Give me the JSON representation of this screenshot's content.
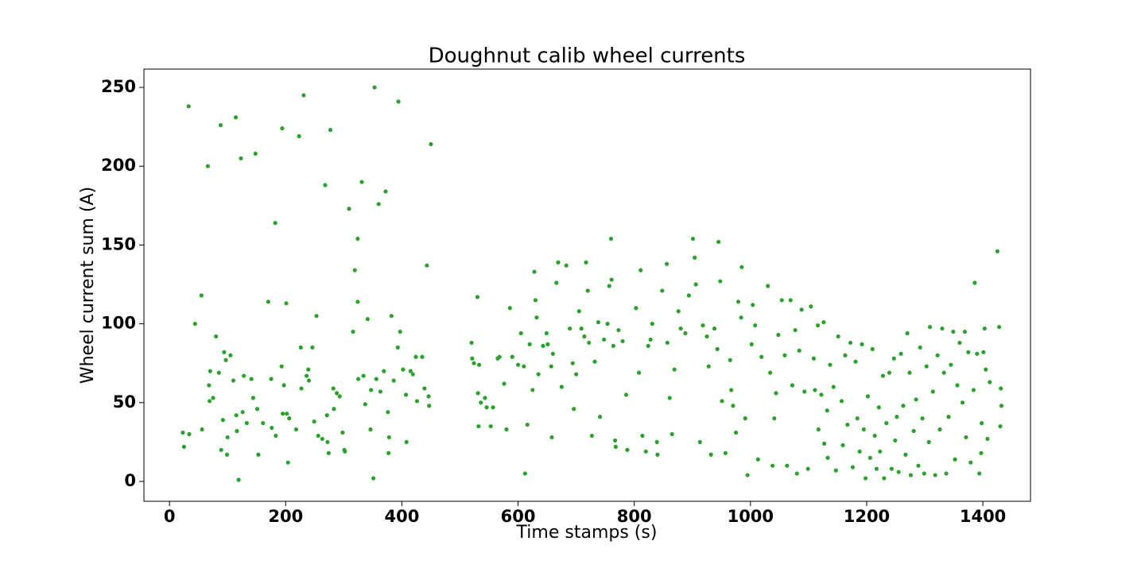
{
  "chart_data": {
    "type": "scatter",
    "title": "Doughnut calib wheel currents",
    "x_label": "Time stamps (s)",
    "y_label": "Wheel current sum (A)",
    "color": "#2ca02c",
    "xlim": [
      -44,
      1482
    ],
    "ylim": [
      -12.6,
      261.6
    ],
    "xticks": [
      0,
      200,
      400,
      600,
      800,
      1000,
      1200,
      1400
    ],
    "yticks": [
      0,
      50,
      100,
      150,
      200,
      250
    ],
    "x": [
      23,
      25,
      33,
      34,
      44,
      55,
      56,
      66,
      69,
      70,
      68,
      75,
      80,
      85,
      88,
      89,
      92,
      94,
      97,
      99,
      100,
      105,
      110,
      114,
      115,
      116,
      119,
      123,
      126,
      128,
      133,
      141,
      144,
      148,
      151,
      153,
      161,
      170,
      175,
      176,
      182,
      183,
      193,
      194,
      195,
      197,
      201,
      202,
      204,
      206,
      218,
      223,
      226,
      227,
      231,
      236,
      239,
      240,
      246,
      249,
      253,
      256,
      263,
      268,
      271,
      272,
      274,
      277,
      282,
      283,
      288,
      293,
      298,
      301,
      302,
      309,
      316,
      319,
      324,
      324,
      325,
      331,
      334,
      337,
      341,
      346,
      347,
      351,
      353,
      356,
      360,
      363,
      369,
      372,
      376,
      377,
      378,
      382,
      386,
      393,
      394,
      397,
      402,
      407,
      408,
      415,
      419,
      424,
      426,
      435,
      439,
      443,
      446,
      450,
      447,
      520,
      521,
      524,
      530,
      531,
      532,
      533,
      536,
      543,
      546,
      553,
      557,
      565,
      568,
      576,
      580,
      586,
      590,
      600,
      605,
      610,
      612,
      616,
      620,
      625,
      628,
      630,
      632,
      635,
      643,
      649,
      651,
      657,
      658,
      660,
      666,
      669,
      675,
      683,
      689,
      694,
      696,
      700,
      705,
      709,
      714,
      717,
      720,
      722,
      727,
      732,
      738,
      741,
      748,
      754,
      757,
      760,
      761,
      764,
      767,
      768,
      773,
      780,
      786,
      788,
      803,
      808,
      811,
      814,
      820,
      824,
      828,
      831,
      839,
      840,
      848,
      856,
      857,
      861,
      865,
      869,
      876,
      880,
      888,
      894,
      901,
      904,
      906,
      913,
      918,
      925,
      928,
      932,
      938,
      943,
      945,
      948,
      951,
      957,
      965,
      967,
      970,
      975,
      979,
      984,
      985,
      991,
      995,
      1002,
      1004,
      1008,
      1013,
      1019,
      1030,
      1034,
      1038,
      1041,
      1044,
      1048,
      1054,
      1059,
      1063,
      1069,
      1072,
      1077,
      1080,
      1084,
      1088,
      1093,
      1099,
      1104,
      1109,
      1111,
      1116,
      1117,
      1122,
      1126,
      1127,
      1132,
      1133,
      1137,
      1143,
      1147,
      1151,
      1157,
      1159,
      1163,
      1167,
      1172,
      1176,
      1181,
      1184,
      1188,
      1192,
      1195,
      1198,
      1202,
      1206,
      1210,
      1214,
      1217,
      1221,
      1223,
      1228,
      1230,
      1234,
      1239,
      1243,
      1247,
      1249,
      1252,
      1255,
      1259,
      1263,
      1267,
      1270,
      1274,
      1276,
      1281,
      1285,
      1289,
      1292,
      1296,
      1299,
      1303,
      1307,
      1309,
      1314,
      1318,
      1322,
      1326,
      1330,
      1333,
      1337,
      1341,
      1345,
      1349,
      1352,
      1356,
      1360,
      1365,
      1369,
      1371,
      1375,
      1379,
      1384,
      1386,
      1390,
      1394,
      1398,
      1403,
      1405,
      1408,
      1412,
      1397,
      1401,
      1425,
      1428,
      1431,
      1430,
      1432
    ],
    "y": [
      31,
      22,
      238,
      30,
      100,
      118,
      33,
      200,
      51,
      70,
      61,
      53,
      92,
      69,
      226,
      20,
      39,
      82,
      77,
      17,
      28,
      80,
      64,
      231,
      42,
      32,
      1,
      205,
      44,
      67,
      37,
      65,
      53,
      208,
      46,
      17,
      37,
      114,
      65,
      34,
      164,
      29,
      73,
      224,
      43,
      61,
      113,
      43,
      12,
      40,
      33,
      219,
      85,
      59,
      245,
      67,
      71,
      64,
      85,
      38,
      105,
      29,
      27,
      188,
      42,
      25,
      18,
      223,
      59,
      46,
      56,
      54,
      31,
      20,
      19,
      173,
      95,
      134,
      154,
      114,
      65,
      190,
      67,
      49,
      103,
      33,
      58,
      2,
      250,
      65,
      176,
      57,
      70,
      184,
      44,
      18,
      28,
      105,
      64,
      85,
      241,
      95,
      71,
      55,
      25,
      70,
      68,
      79,
      51,
      79,
      59,
      137,
      54,
      214,
      48,
      88,
      78,
      75,
      117,
      56,
      35,
      74,
      50,
      53,
      47,
      35,
      47,
      78,
      79,
      62,
      33,
      110,
      79,
      74,
      94,
      73,
      5,
      36,
      87,
      58,
      133,
      115,
      104,
      68,
      86,
      94,
      87,
      73,
      28,
      81,
      126,
      139,
      60,
      137,
      97,
      75,
      46,
      68,
      108,
      97,
      92,
      139,
      121,
      88,
      29,
      76,
      101,
      41,
      90,
      100,
      124,
      154,
      128,
      86,
      26,
      22,
      96,
      89,
      55,
      20,
      110,
      69,
      134,
      29,
      19,
      86,
      90,
      100,
      25,
      17,
      121,
      138,
      88,
      53,
      30,
      71,
      108,
      97,
      94,
      118,
      154,
      142,
      125,
      25,
      99,
      92,
      73,
      17,
      97,
      84,
      152,
      127,
      51,
      18,
      77,
      58,
      48,
      31,
      114,
      104,
      136,
      40,
      4,
      87,
      112,
      99,
      14,
      79,
      124,
      69,
      10,
      40,
      56,
      93,
      115,
      80,
      10,
      115,
      61,
      96,
      5,
      83,
      109,
      57,
      8,
      111,
      78,
      58,
      99,
      33,
      55,
      101,
      24,
      45,
      15,
      74,
      60,
      7,
      92,
      51,
      23,
      80,
      36,
      88,
      9,
      76,
      40,
      19,
      87,
      33,
      2,
      54,
      15,
      84,
      29,
      8,
      47,
      19,
      67,
      2,
      37,
      69,
      8,
      78,
      26,
      41,
      6,
      81,
      48,
      17,
      94,
      69,
      4,
      32,
      52,
      10,
      85,
      40,
      5,
      73,
      25,
      98,
      57,
      4,
      80,
      33,
      97,
      69,
      5,
      41,
      74,
      95,
      14,
      61,
      88,
      50,
      95,
      28,
      82,
      12,
      58,
      126,
      81,
      5,
      37,
      97,
      71,
      27,
      63,
      18,
      82,
      146,
      98,
      59,
      35,
      48
    ]
  }
}
